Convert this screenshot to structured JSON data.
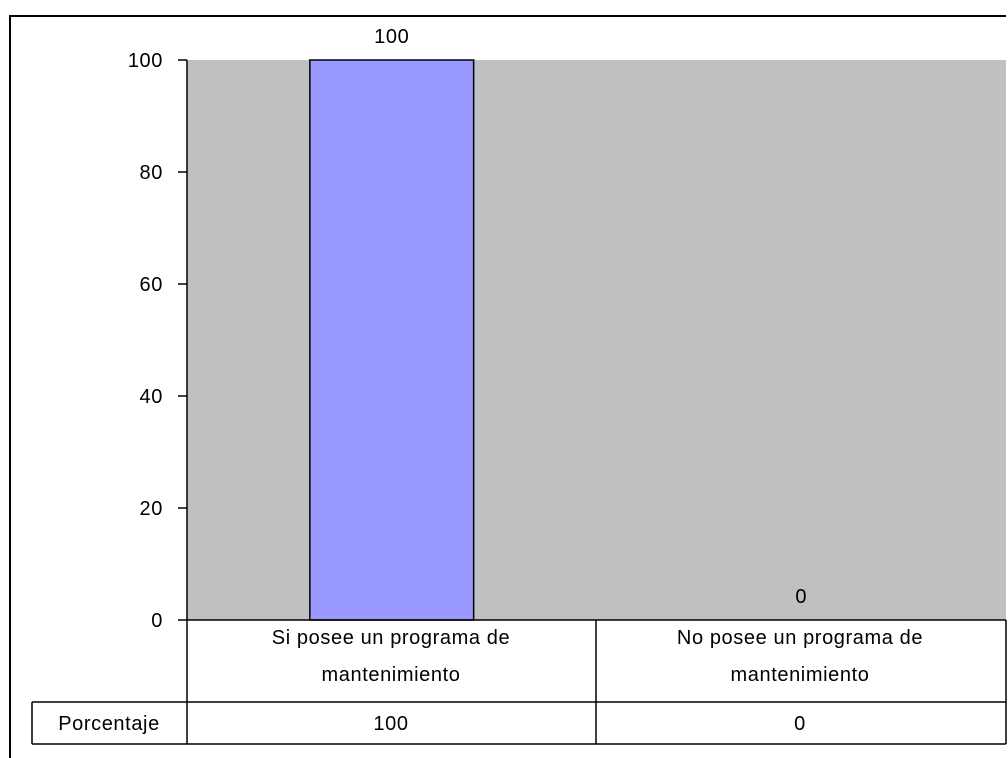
{
  "chart_data": {
    "type": "bar",
    "categories": [
      [
        "Si posee un programa  de",
        "mantenimiento"
      ],
      [
        "No posee un programa de",
        "mantenimiento"
      ]
    ],
    "series": [
      {
        "name": "Porcentaje",
        "values": [
          100,
          0
        ]
      }
    ],
    "data_labels": [
      "100",
      "0"
    ],
    "ylim": [
      0,
      100
    ],
    "yticks": [
      0,
      20,
      40,
      60,
      80,
      100
    ],
    "grid": false,
    "legend": "none",
    "data_table": {
      "row_label": "Porcentaje",
      "cells": [
        "100",
        "0"
      ]
    },
    "colors": {
      "bar": "#9999ff",
      "plot_background": "#c0c0c0"
    }
  }
}
